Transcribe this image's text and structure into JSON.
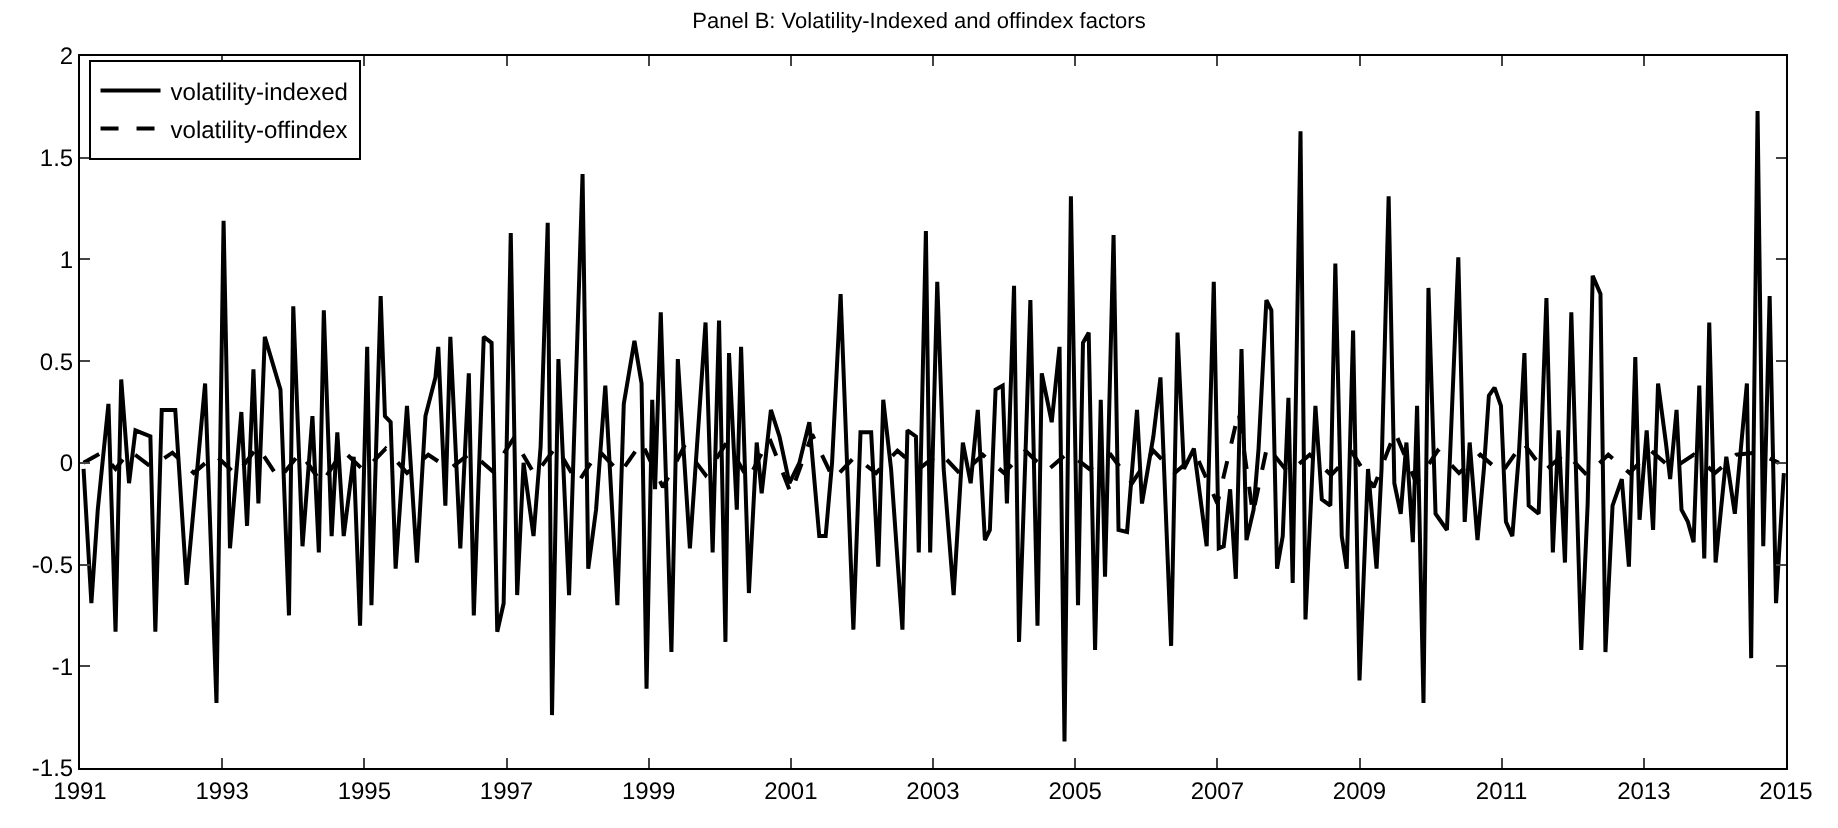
{
  "chart_data": {
    "type": "line",
    "title": "Panel B: Volatility-Indexed and offindex factors",
    "xlim": [
      1991,
      2015
    ],
    "xticks": [
      1991,
      1993,
      1995,
      1997,
      1999,
      2001,
      2003,
      2005,
      2007,
      2009,
      2011,
      2013,
      2015
    ],
    "ylim": [
      -1.5,
      2
    ],
    "yticks": [
      -1.5,
      -1,
      -0.5,
      0,
      0.5,
      1,
      1.5,
      2
    ],
    "legend": "top left",
    "series": [
      {
        "name": "volatility-indexed",
        "color": "#000000",
        "line_style": "solid",
        "x": [
          1991.05,
          1991.16,
          1991.25,
          1991.4,
          1991.5,
          1991.58,
          1991.69,
          1991.78,
          1991.99,
          1992.06,
          1992.15,
          1992.34,
          1992.5,
          1992.76,
          1992.92,
          1993.02,
          1993.11,
          1993.27,
          1993.35,
          1993.44,
          1993.51,
          1993.6,
          1993.82,
          1993.94,
          1994.0,
          1994.13,
          1994.27,
          1994.36,
          1994.43,
          1994.54,
          1994.62,
          1994.71,
          1994.85,
          1994.94,
          1995.04,
          1995.1,
          1995.23,
          1995.29,
          1995.37,
          1995.44,
          1995.6,
          1995.74,
          1995.86,
          1996.0,
          1996.04,
          1996.14,
          1996.21,
          1996.35,
          1996.47,
          1996.54,
          1996.68,
          1996.79,
          1996.87,
          1996.96,
          1997.06,
          1997.15,
          1997.24,
          1997.38,
          1997.48,
          1997.58,
          1997.64,
          1997.73,
          1997.81,
          1997.88,
          1998.07,
          1998.15,
          1998.26,
          1998.39,
          1998.56,
          1998.65,
          1998.8,
          1998.9,
          1998.97,
          1999.05,
          1999.09,
          1999.17,
          1999.32,
          1999.41,
          1999.58,
          1999.8,
          1999.9,
          1999.99,
          2000.08,
          2000.13,
          2000.24,
          2000.3,
          2000.41,
          2000.52,
          2000.59,
          2000.72,
          2000.84,
          2000.98,
          2001.12,
          2001.26,
          2001.4,
          2001.49,
          2001.58,
          2001.7,
          2001.88,
          2001.98,
          2002.13,
          2002.23,
          2002.3,
          2002.41,
          2002.57,
          2002.64,
          2002.76,
          2002.8,
          2002.9,
          2002.96,
          2003.06,
          2003.15,
          2003.29,
          2003.42,
          2003.53,
          2003.63,
          2003.73,
          2003.8,
          2003.88,
          2003.98,
          2004.04,
          2004.14,
          2004.21,
          2004.3,
          2004.37,
          2004.47,
          2004.53,
          2004.67,
          2004.78,
          2004.85,
          2004.94,
          2005.04,
          2005.11,
          2005.19,
          2005.28,
          2005.36,
          2005.42,
          2005.54,
          2005.61,
          2005.73,
          2005.87,
          2005.94,
          2006.1,
          2006.2,
          2006.35,
          2006.44,
          2006.53,
          2006.67,
          2006.85,
          2006.95,
          2007.02,
          2007.09,
          2007.18,
          2007.26,
          2007.34,
          2007.41,
          2007.51,
          2007.58,
          2007.69,
          2007.76,
          2007.84,
          2007.92,
          2008.0,
          2008.06,
          2008.17,
          2008.24,
          2008.38,
          2008.47,
          2008.59,
          2008.66,
          2008.75,
          2008.82,
          2008.91,
          2009.0,
          2009.12,
          2009.24,
          2009.31,
          2009.41,
          2009.49,
          2009.58,
          2009.66,
          2009.75,
          2009.81,
          2009.9,
          2009.97,
          2010.07,
          2010.23,
          2010.39,
          2010.48,
          2010.55,
          2010.66,
          2010.75,
          2010.82,
          2010.9,
          2010.99,
          2011.06,
          2011.15,
          2011.24,
          2011.32,
          2011.38,
          2011.52,
          2011.63,
          2011.72,
          2011.8,
          2011.89,
          2011.98,
          2012.12,
          2012.21,
          2012.28,
          2012.39,
          2012.46,
          2012.56,
          2012.69,
          2012.79,
          2012.88,
          2012.94,
          2013.04,
          2013.13,
          2013.2,
          2013.31,
          2013.37,
          2013.46,
          2013.53,
          2013.62,
          2013.7,
          2013.78,
          2013.85,
          2013.92,
          2014.01,
          2014.16,
          2014.28,
          2014.45,
          2014.51,
          2014.6,
          2014.68,
          2014.77,
          2014.86,
          2014.97
        ],
        "values": [
          -0.03,
          -0.69,
          -0.23,
          0.29,
          -0.83,
          0.41,
          -0.1,
          0.16,
          0.13,
          -0.83,
          0.26,
          0.26,
          -0.6,
          0.39,
          -1.18,
          1.19,
          -0.42,
          0.25,
          -0.31,
          0.46,
          -0.2,
          0.62,
          0.36,
          -0.75,
          0.77,
          -0.41,
          0.23,
          -0.44,
          0.75,
          -0.36,
          0.15,
          -0.36,
          0.03,
          -0.8,
          0.57,
          -0.7,
          0.82,
          0.23,
          0.2,
          -0.52,
          0.28,
          -0.49,
          0.23,
          0.42,
          0.57,
          -0.21,
          0.62,
          -0.42,
          0.44,
          -0.75,
          0.62,
          0.59,
          -0.83,
          -0.69,
          1.13,
          -0.65,
          0.0,
          -0.36,
          0.08,
          1.18,
          -1.24,
          0.51,
          -0.1,
          -0.65,
          1.42,
          -0.52,
          -0.23,
          0.38,
          -0.7,
          0.29,
          0.6,
          0.39,
          -1.11,
          0.31,
          -0.13,
          0.74,
          -0.93,
          0.51,
          -0.42,
          0.69,
          -0.44,
          0.7,
          -0.88,
          0.54,
          -0.23,
          0.57,
          -0.64,
          0.1,
          -0.15,
          0.26,
          0.13,
          -0.1,
          0.0,
          0.2,
          -0.36,
          -0.36,
          0.0,
          0.83,
          -0.82,
          0.15,
          0.15,
          -0.51,
          0.31,
          -0.03,
          -0.82,
          0.16,
          0.13,
          -0.44,
          1.14,
          -0.44,
          0.89,
          -0.03,
          -0.65,
          0.1,
          -0.1,
          0.26,
          -0.38,
          -0.33,
          0.36,
          0.38,
          -0.2,
          0.87,
          -0.88,
          0.03,
          0.8,
          -0.8,
          0.44,
          0.2,
          0.57,
          -1.37,
          1.31,
          -0.7,
          0.59,
          0.64,
          -0.92,
          0.31,
          -0.56,
          1.12,
          -0.33,
          -0.34,
          0.26,
          -0.2,
          0.13,
          0.42,
          -0.9,
          0.64,
          -0.03,
          0.07,
          -0.41,
          0.89,
          -0.42,
          -0.41,
          -0.13,
          -0.57,
          0.56,
          -0.38,
          -0.23,
          0.07,
          0.8,
          0.75,
          -0.52,
          -0.36,
          0.32,
          -0.59,
          1.63,
          -0.77,
          0.28,
          -0.18,
          -0.21,
          0.98,
          -0.36,
          -0.52,
          0.65,
          -1.07,
          -0.03,
          -0.52,
          -0.03,
          1.31,
          -0.1,
          -0.25,
          0.1,
          -0.39,
          0.28,
          -1.18,
          0.86,
          -0.25,
          -0.33,
          1.01,
          -0.29,
          0.1,
          -0.38,
          -0.03,
          0.33,
          0.37,
          0.28,
          -0.29,
          -0.36,
          0.03,
          0.54,
          -0.21,
          -0.25,
          0.81,
          -0.44,
          0.16,
          -0.49,
          0.74,
          -0.92,
          -0.2,
          0.92,
          0.83,
          -0.93,
          -0.21,
          -0.08,
          -0.51,
          0.52,
          -0.28,
          0.16,
          -0.33,
          0.39,
          0.1,
          -0.08,
          0.26,
          -0.23,
          -0.29,
          -0.39,
          0.38,
          -0.47,
          0.69,
          -0.49,
          0.03,
          -0.25,
          0.39,
          -0.96,
          1.73,
          -0.41,
          0.82,
          -0.69,
          -0.05
        ]
      },
      {
        "name": "volatility-offindex",
        "color": "#000000",
        "line_style": "dashed",
        "x": [
          1991.05,
          1991.3,
          1991.5,
          1991.7,
          1992.0,
          1992.3,
          1992.6,
          1992.9,
          1993.2,
          1993.5,
          1993.8,
          1994.1,
          1994.4,
          1994.7,
          1995.0,
          1995.3,
          1995.6,
          1995.9,
          1996.2,
          1996.5,
          1996.8,
          1997.1,
          1997.4,
          1997.7,
          1998.0,
          1998.3,
          1998.6,
          1998.9,
          1999.2,
          1999.5,
          1999.8,
          2000.1,
          2000.4,
          2000.7,
          2001.0,
          2001.3,
          2001.6,
          2001.9,
          2002.2,
          2002.5,
          2002.8,
          2003.1,
          2003.4,
          2003.7,
          2004.0,
          2004.3,
          2004.6,
          2004.9,
          2005.2,
          2005.5,
          2005.8,
          2006.1,
          2006.4,
          2006.7,
          2007.0,
          2007.3,
          2007.5,
          2007.7,
          2008.0,
          2008.3,
          2008.6,
          2008.9,
          2009.2,
          2009.5,
          2009.8,
          2010.1,
          2010.4,
          2010.7,
          2011.0,
          2011.3,
          2011.6,
          2011.9,
          2012.2,
          2012.5,
          2012.8,
          2013.1,
          2013.4,
          2013.7,
          2014.0,
          2014.3,
          2014.6,
          2014.9
        ],
        "values": [
          0.0,
          0.05,
          -0.03,
          0.06,
          -0.02,
          0.05,
          -0.05,
          0.04,
          -0.06,
          0.08,
          -0.08,
          0.05,
          -0.1,
          0.06,
          -0.04,
          0.07,
          -0.05,
          0.04,
          -0.03,
          0.05,
          -0.04,
          0.12,
          -0.06,
          0.08,
          -0.1,
          0.06,
          -0.05,
          0.1,
          -0.12,
          0.08,
          -0.06,
          0.1,
          -0.08,
          0.12,
          -0.15,
          0.14,
          -0.08,
          0.03,
          -0.05,
          0.06,
          -0.03,
          0.05,
          -0.06,
          0.04,
          -0.05,
          0.06,
          -0.04,
          0.05,
          -0.03,
          0.04,
          -0.1,
          0.06,
          -0.05,
          0.04,
          -0.2,
          0.25,
          -0.25,
          0.08,
          -0.05,
          0.04,
          -0.06,
          0.05,
          -0.12,
          0.15,
          -0.1,
          0.06,
          -0.05,
          0.04,
          -0.05,
          0.1,
          -0.04,
          0.05,
          -0.06,
          0.04,
          -0.05,
          0.06,
          -0.03,
          0.04,
          -0.05,
          0.04,
          0.05,
          0.0
        ]
      }
    ]
  }
}
